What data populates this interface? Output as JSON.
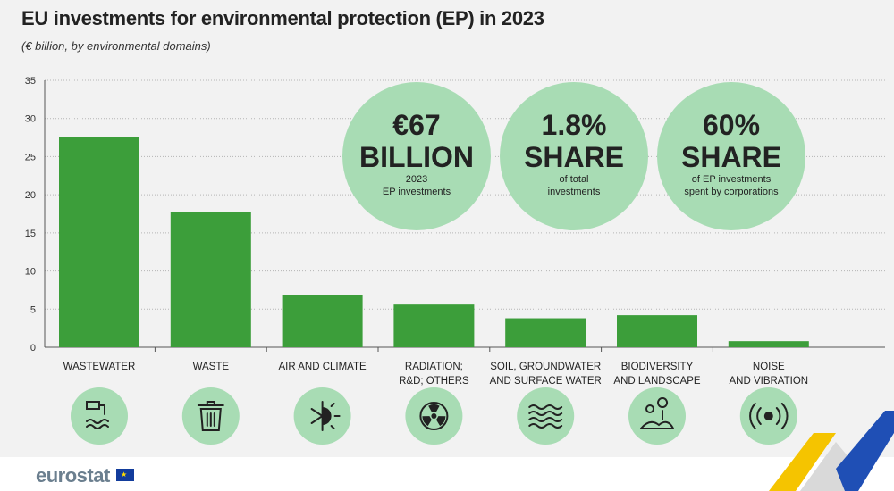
{
  "header": {
    "title": "EU investments for environmental protection (EP) in 2023",
    "subtitle": "(€ billion, by environmental domains)"
  },
  "chart_data": {
    "type": "bar",
    "categories": [
      "WASTEWATER",
      "WASTE",
      "AIR AND CLIMATE",
      "RADIATION; R&D; OTHERS",
      "SOIL, GROUNDWATER AND SURFACE WATER",
      "BIODIVERSITY AND LANDSCAPE",
      "NOISE AND VIBRATION"
    ],
    "category_lines": [
      [
        "WASTEWATER"
      ],
      [
        "WASTE"
      ],
      [
        "AIR AND CLIMATE"
      ],
      [
        "RADIATION;",
        "R&D; OTHERS"
      ],
      [
        "SOIL, GROUNDWATER",
        "AND SURFACE WATER"
      ],
      [
        "BIODIVERSITY",
        "AND LANDSCAPE"
      ],
      [
        "NOISE",
        "AND VIBRATION"
      ]
    ],
    "values": [
      27.6,
      17.7,
      6.9,
      5.6,
      3.8,
      4.2,
      0.8
    ],
    "ylim": [
      0,
      35
    ],
    "yticks": [
      0,
      5,
      10,
      15,
      20,
      25,
      30,
      35
    ],
    "grid": true,
    "title": "EU investments for environmental protection (EP) in 2023",
    "ylabel": "€ billion",
    "bar_color": "#3c9e3a"
  },
  "icons": [
    "wastewater-icon",
    "waste-bin-icon",
    "air-climate-icon",
    "radiation-icon",
    "water-waves-icon",
    "biodiversity-landscape-icon",
    "noise-vibration-icon"
  ],
  "highlights": [
    {
      "big1": "€67",
      "big2": "BILLION",
      "small1": "2023",
      "small2": "EP investments"
    },
    {
      "big1": "1.8%",
      "big2": "SHARE",
      "small1": "of total",
      "small2": "investments"
    },
    {
      "big1": "60%",
      "big2": "SHARE",
      "small1": "of EP investments",
      "small2": "spent by corporations"
    }
  ],
  "colors": {
    "bar": "#3c9e3a",
    "circle": "#a8dcb4",
    "background": "#f2f2f2",
    "grid": "#b5b5b5"
  },
  "footer": {
    "logo": "eurostat"
  }
}
